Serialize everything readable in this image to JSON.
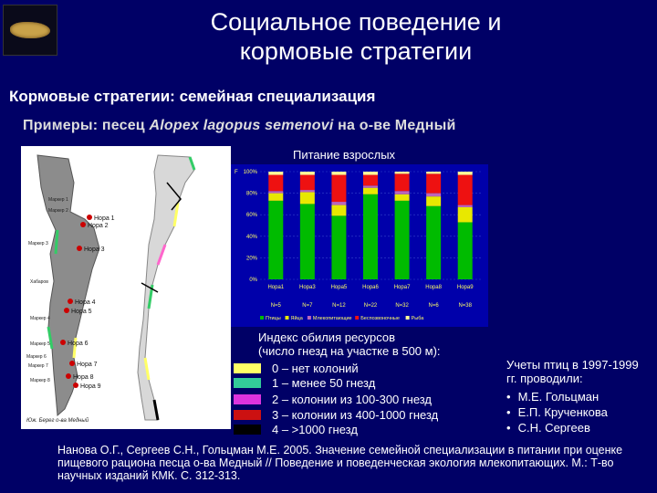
{
  "header": {
    "title_line1": "Социальное поведение и",
    "title_line2": "кормовые стратегии"
  },
  "subtitle": "Кормовые стратегии: семейная специализация",
  "example": {
    "prefix": "Примеры",
    "middle": ": песец ",
    "species": "Alopex lagopus semenovi",
    "suffix": " на о-ве Медный"
  },
  "map": {
    "labels": [
      "Нора 1",
      "Нора 2",
      "Нора 3",
      "Нора 4",
      "Нора 5",
      "Нора 6",
      "Нора 7",
      "Нора 8",
      "Нора 9"
    ],
    "place_labels": [
      "Маркер 1",
      "Маркер 2",
      "Маркер 3",
      "Хабаров",
      "Маркер 4",
      "Маркер 5",
      "Маркер 6",
      "Маркер 7",
      "Маркер 8"
    ],
    "caption": "Юж. Берег о-ва Медный",
    "colors": {
      "land": "#8c8c8c",
      "land_right": "#d8d8d8",
      "den": "#cc0000",
      "coast_green": "#33cc66",
      "coast_yellow": "#ffff66",
      "coast_pink": "#ff66cc",
      "coast_black": "#000000"
    }
  },
  "chart_title": "Питание взрослых",
  "chart_data": {
    "type": "bar",
    "stacked": true,
    "percent": true,
    "y_label": "F",
    "y_ticks": [
      "0%",
      "20%",
      "40%",
      "60%",
      "80%",
      "100%"
    ],
    "ylim": [
      0,
      100
    ],
    "categories": [
      "Нора1",
      "Нора3",
      "Нора5",
      "Нора6",
      "Нора7",
      "Нора8",
      "Нора9"
    ],
    "sample_sizes": [
      "N=5",
      "N=7",
      "N=12",
      "N=22",
      "N=32",
      "N=6",
      "N=38"
    ],
    "series": [
      {
        "name": "Птицы",
        "color": "#00bb00",
        "values": [
          73,
          70,
          59,
          79,
          73,
          68,
          53
        ]
      },
      {
        "name": "Яйца",
        "color": "#e8e800",
        "values": [
          7,
          11,
          10,
          6,
          6,
          9,
          14
        ]
      },
      {
        "name": "Млекопитающие",
        "color": "#bb66bb",
        "values": [
          2,
          2,
          3,
          2,
          3,
          3,
          2
        ]
      },
      {
        "name": "Беспозвоночные",
        "color": "#ee1111",
        "values": [
          15,
          14,
          25,
          10,
          16,
          18,
          28
        ]
      },
      {
        "name": "Рыба",
        "color": "#ffff99",
        "values": [
          3,
          3,
          3,
          3,
          2,
          2,
          3
        ]
      }
    ],
    "legend_position": "bottom"
  },
  "resource_legend": {
    "title_line1": "Индекс обилия ресурсов",
    "title_line2": "(число гнезд на участке в 500 м):",
    "items": [
      {
        "label": "0 – нет колоний",
        "color": "#ffff66"
      },
      {
        "label": "1 – менее 50 гнезд",
        "color": "#33cc99"
      },
      {
        "label": "2 – колонии из 100-300 гнезд",
        "color": "#dd33dd"
      },
      {
        "label": "3 – колонии из 400-1000 гнезд",
        "color": "#cc1111"
      },
      {
        "label": "4 – >1000 гнезд",
        "color": "#000000"
      }
    ]
  },
  "bird_counts": {
    "intro": "Учеты птиц в 1997-1999 гг. проводили:",
    "people": [
      "М.Е. Гольцман",
      "Е.П. Крученкова",
      "С.Н. Сергеев"
    ]
  },
  "reference": "Нанова О.Г., Сергеев С.Н., Гольцман М.Е. 2005. Значение семейной специализации в питании при оценке пищевого рациона песца о-ва Медный // Поведение и поведенческая экология млекопитающих. М.: Т-во научных изданий КМК. С. 312-313."
}
